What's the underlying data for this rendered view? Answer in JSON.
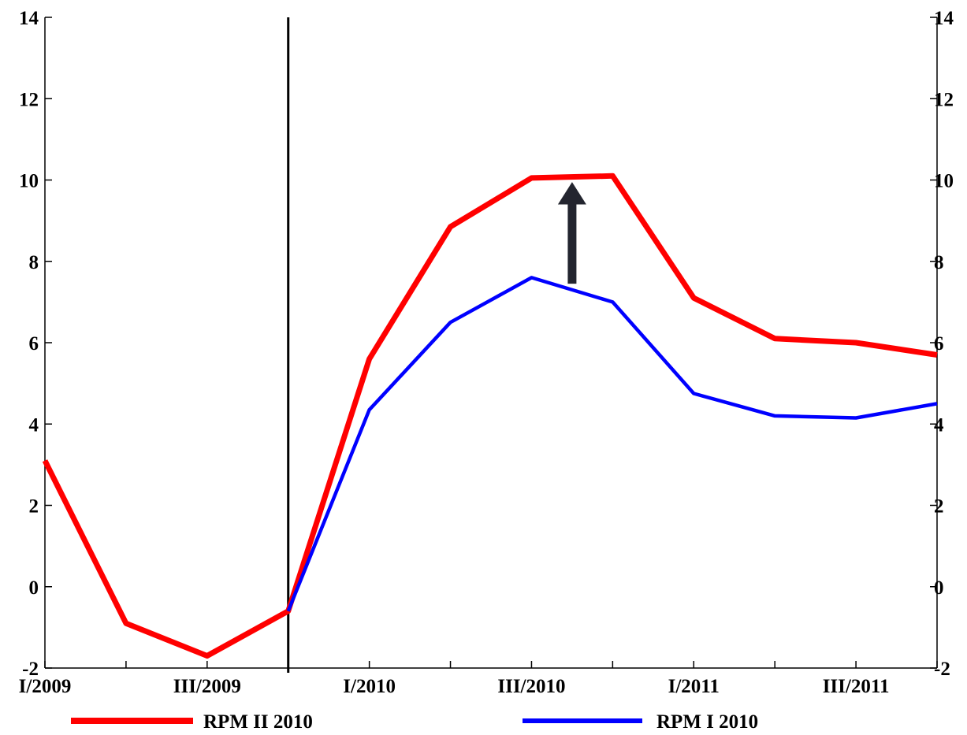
{
  "chart_data": {
    "type": "line",
    "title": "",
    "xlabel": "",
    "ylabel": "",
    "x": [
      "I/2009",
      "II/2009",
      "III/2009",
      "IV/2009",
      "I/2010",
      "II/2010",
      "III/2010",
      "IV/2010",
      "I/2011",
      "II/2011",
      "III/2011",
      "IV/2011"
    ],
    "x_tick_labels": [
      "I/2009",
      "III/2009",
      "I/2010",
      "III/2010",
      "I/2011",
      "III/2011"
    ],
    "ylim": [
      -2,
      14
    ],
    "yticks": [
      -2,
      0,
      2,
      4,
      6,
      8,
      10,
      12,
      14
    ],
    "secondary_y_axis": true,
    "grid": false,
    "legend_position": "bottom",
    "vertical_marker_at": "IV/2009",
    "annotation": "upward arrow between series around III/2010–IV/2010",
    "series": [
      {
        "name": "RPM II 2010",
        "color": "#ff0000",
        "values": [
          3.1,
          -0.9,
          -1.7,
          -0.6,
          5.6,
          8.85,
          10.05,
          10.1,
          7.1,
          6.1,
          6.0,
          5.7
        ]
      },
      {
        "name": "RPM I 2010",
        "color": "#0000ff",
        "values": [
          null,
          null,
          null,
          -0.6,
          4.35,
          6.5,
          7.6,
          7.0,
          4.75,
          4.2,
          4.15,
          4.5
        ]
      }
    ]
  }
}
